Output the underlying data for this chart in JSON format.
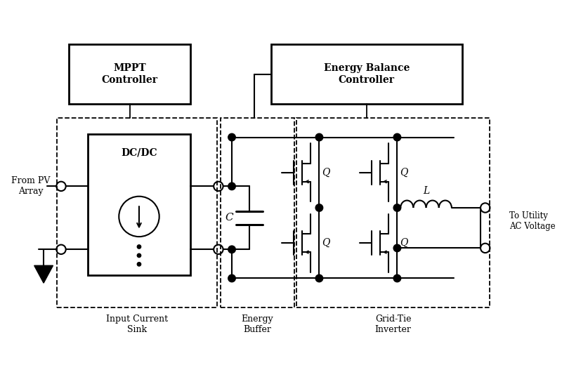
{
  "bg_color": "#ffffff",
  "fig_width": 8.0,
  "fig_height": 5.47,
  "dpi": 100,
  "labels": {
    "mppt": "MPPT\nController",
    "energy_balance": "Energy Balance\nController",
    "dc_dc": "DC/DC",
    "from_pv": "From PV\nArray",
    "input_current_sink": "Input Current\nSink",
    "energy_buffer": "Energy\nBuffer",
    "grid_tie": "Grid-Tie\nInverter",
    "to_utility": "To Utility\nAC Voltage",
    "cap_label": "C",
    "ind_label": "L",
    "q_label": "Q"
  }
}
